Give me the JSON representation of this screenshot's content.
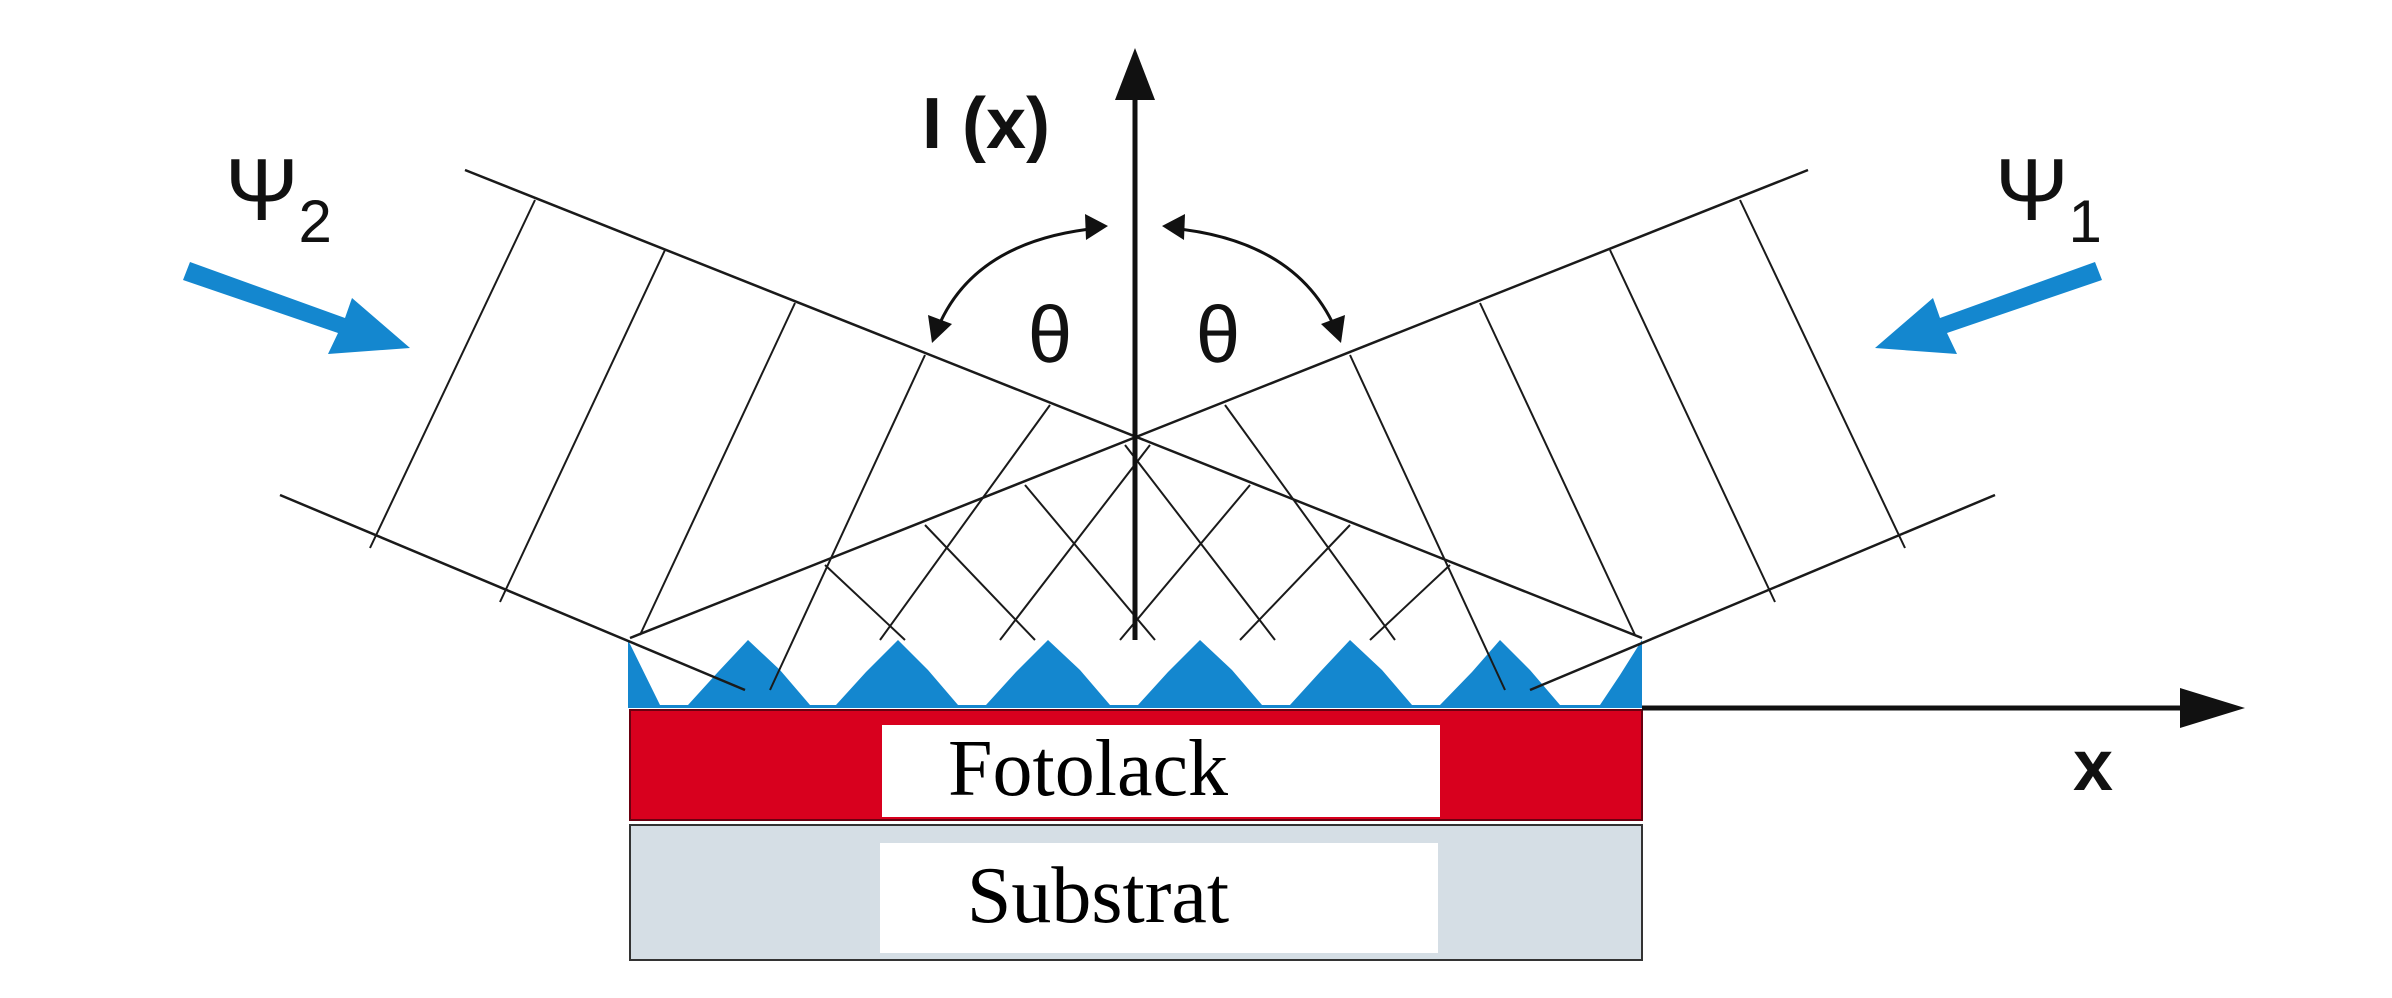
{
  "labels": {
    "y_axis": "I (x)",
    "x_axis": "x",
    "angle_left": "θ",
    "angle_right": "θ",
    "wave1_symbol": "Ψ",
    "wave1_index": "1",
    "wave2_symbol": "Ψ",
    "wave2_index": "2",
    "photoresist": "Fotolack",
    "substrate": "Substrat"
  },
  "colors": {
    "interference_pattern": "#1487CF",
    "photoresist_layer": "#D8001E",
    "substrate_layer": "#D5DEE5",
    "arrow": "#1487CF",
    "line": "#1a1a1a"
  },
  "icons": {
    "wave1_arrow": "arrow-down-left-icon",
    "wave2_arrow": "arrow-down-right-icon"
  }
}
